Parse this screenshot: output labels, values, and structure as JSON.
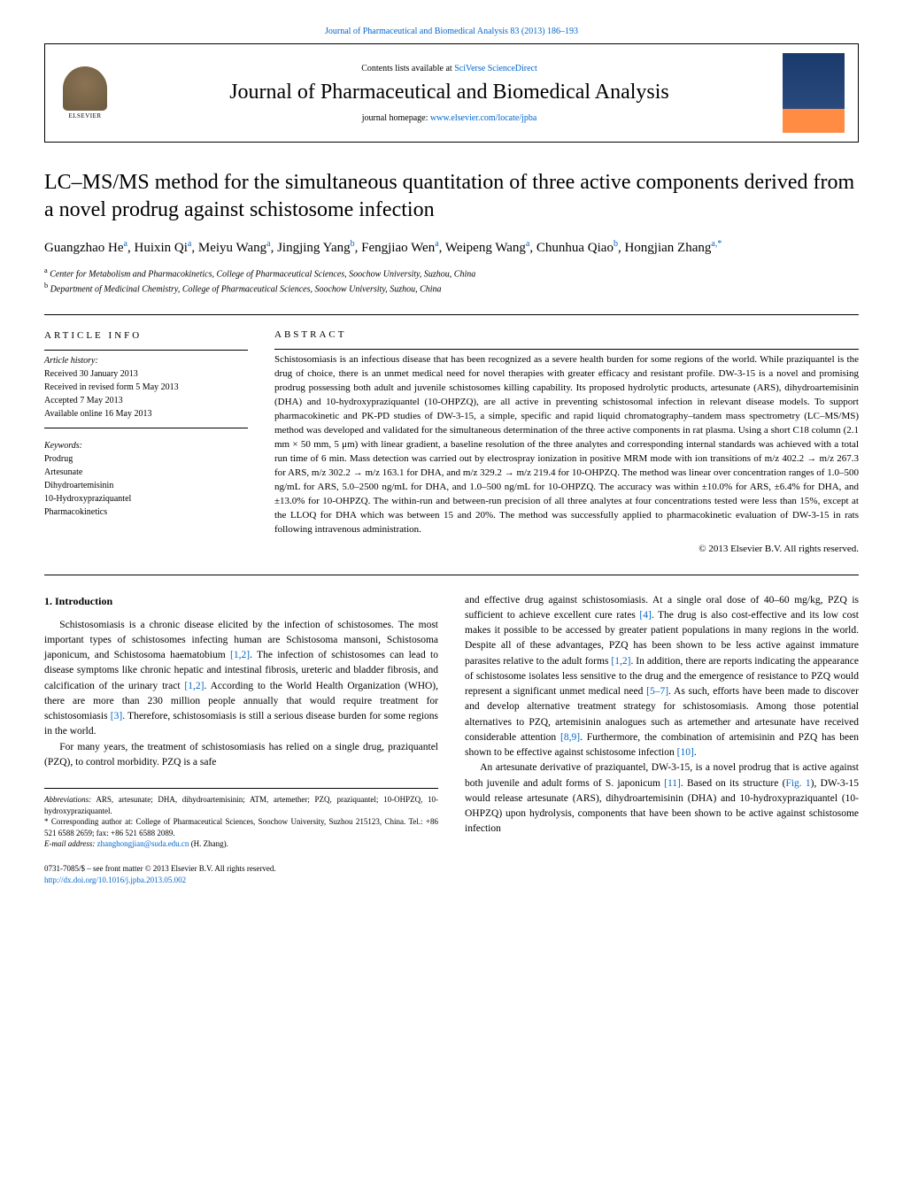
{
  "header": {
    "citation": "Journal of Pharmaceutical and Biomedical Analysis 83 (2013) 186–193",
    "contents_prefix": "Contents lists available at ",
    "contents_link": "SciVerse ScienceDirect",
    "journal_title": "Journal of Pharmaceutical and Biomedical Analysis",
    "homepage_prefix": "journal homepage: ",
    "homepage_link": "www.elsevier.com/locate/jpba",
    "elsevier_label": "ELSEVIER"
  },
  "article": {
    "title": "LC–MS/MS method for the simultaneous quantitation of three active components derived from a novel prodrug against schistosome infection",
    "authors_html": "Guangzhao He<sup>a</sup>, Huixin Qi<sup>a</sup>, Meiyu Wang<sup>a</sup>, Jingjing Yang<sup>b</sup>, Fengjiao Wen<sup>a</sup>, Weipeng Wang<sup>a</sup>, Chunhua Qiao<sup>b</sup>, Hongjian Zhang<sup>a,*</sup>",
    "affil_a": "Center for Metabolism and Pharmacokinetics, College of Pharmaceutical Sciences, Soochow University, Suzhou, China",
    "affil_b": "Department of Medicinal Chemistry, College of Pharmaceutical Sciences, Soochow University, Suzhou, China"
  },
  "info": {
    "heading": "ARTICLE INFO",
    "history_label": "Article history:",
    "received": "Received 30 January 2013",
    "revised": "Received in revised form 5 May 2013",
    "accepted": "Accepted 7 May 2013",
    "online": "Available online 16 May 2013",
    "keywords_label": "Keywords:",
    "keywords": [
      "Prodrug",
      "Artesunate",
      "Dihydroartemisinin",
      "10-Hydroxypraziquantel",
      "Pharmacokinetics"
    ]
  },
  "abstract": {
    "heading": "ABSTRACT",
    "text": "Schistosomiasis is an infectious disease that has been recognized as a severe health burden for some regions of the world. While praziquantel is the drug of choice, there is an unmet medical need for novel therapies with greater efficacy and resistant profile. DW-3-15 is a novel and promising prodrug possessing both adult and juvenile schistosomes killing capability. Its proposed hydrolytic products, artesunate (ARS), dihydroartemisinin (DHA) and 10-hydroxypraziquantel (10-OHPZQ), are all active in preventing schistosomal infection in relevant disease models. To support pharmacokinetic and PK-PD studies of DW-3-15, a simple, specific and rapid liquid chromatography–tandem mass spectrometry (LC–MS/MS) method was developed and validated for the simultaneous determination of the three active components in rat plasma. Using a short C18 column (2.1 mm × 50 mm, 5 μm) with linear gradient, a baseline resolution of the three analytes and corresponding internal standards was achieved with a total run time of 6 min. Mass detection was carried out by electrospray ionization in positive MRM mode with ion transitions of m/z 402.2 → m/z 267.3 for ARS, m/z 302.2 → m/z 163.1 for DHA, and m/z 329.2 → m/z 219.4 for 10-OHPZQ. The method was linear over concentration ranges of 1.0–500 ng/mL for ARS, 5.0–2500 ng/mL for DHA, and 1.0–500 ng/mL for 10-OHPZQ. The accuracy was within ±10.0% for ARS, ±6.4% for DHA, and ±13.0% for 10-OHPZQ. The within-run and between-run precision of all three analytes at four concentrations tested were less than 15%, except at the LLOQ for DHA which was between 15 and 20%. The method was successfully applied to pharmacokinetic evaluation of DW-3-15 in rats following intravenous administration.",
    "copyright": "© 2013 Elsevier B.V. All rights reserved."
  },
  "body": {
    "intro_heading": "1. Introduction",
    "p1": "Schistosomiasis is a chronic disease elicited by the infection of schistosomes. The most important types of schistosomes infecting human are Schistosoma mansoni, Schistosoma japonicum, and Schistosoma haematobium [1,2]. The infection of schistosomes can lead to disease symptoms like chronic hepatic and intestinal fibrosis, ureteric and bladder fibrosis, and calcification of the urinary tract [1,2]. According to the World Health Organization (WHO), there are more than 230 million people annually that would require treatment for schistosomiasis [3]. Therefore, schistosomiasis is still a serious disease burden for some regions in the world.",
    "p2": "For many years, the treatment of schistosomiasis has relied on a single drug, praziquantel (PZQ), to control morbidity. PZQ is a safe",
    "p3": "and effective drug against schistosomiasis. At a single oral dose of 40–60 mg/kg, PZQ is sufficient to achieve excellent cure rates [4]. The drug is also cost-effective and its low cost makes it possible to be accessed by greater patient populations in many regions in the world. Despite all of these advantages, PZQ has been shown to be less active against immature parasites relative to the adult forms [1,2]. In addition, there are reports indicating the appearance of schistosome isolates less sensitive to the drug and the emergence of resistance to PZQ would represent a significant unmet medical need [5–7]. As such, efforts have been made to discover and develop alternative treatment strategy for schistosomiasis. Among those potential alternatives to PZQ, artemisinin analogues such as artemether and artesunate have received considerable attention [8,9]. Furthermore, the combination of artemisinin and PZQ has been shown to be effective against schistosome infection [10].",
    "p4": "An artesunate derivative of praziquantel, DW-3-15, is a novel prodrug that is active against both juvenile and adult forms of S. japonicum [11]. Based on its structure (Fig. 1), DW-3-15 would release artesunate (ARS), dihydroartemisinin (DHA) and 10-hydroxypraziquantel (10-OHPZQ) upon hydrolysis, components that have been shown to be active against schistosome infection"
  },
  "footnotes": {
    "abbrev_label": "Abbreviations:",
    "abbrev": " ARS, artesunate; DHA, dihydroartemisinin; ATM, artemether; PZQ, praziquantel; 10-OHPZQ, 10-hydroxypraziquantel.",
    "corr_label": "* Corresponding author at: ",
    "corr": "College of Pharmaceutical Sciences, Soochow University, Suzhou 215123, China. Tel.: +86 521 6588 2659; fax: +86 521 6588 2089.",
    "email_label": "E-mail address: ",
    "email": "zhanghongjian@suda.edu.cn",
    "email_suffix": " (H. Zhang)."
  },
  "footer": {
    "issn": "0731-7085/$ – see front matter © 2013 Elsevier B.V. All rights reserved.",
    "doi": "http://dx.doi.org/10.1016/j.jpba.2013.05.002"
  },
  "refs": {
    "r12a": "[1,2]",
    "r12b": "[1,2]",
    "r3": "[3]",
    "r4": "[4]",
    "r12c": "[1,2]",
    "r57": "[5–7]",
    "r89": "[8,9]",
    "r10": "[10]",
    "r11": "[11]",
    "fig1": "Fig. 1"
  },
  "colors": {
    "link": "#0066cc",
    "text": "#000000",
    "cover_top": "#1a3a6e",
    "cover_bottom": "#ff8c42"
  }
}
